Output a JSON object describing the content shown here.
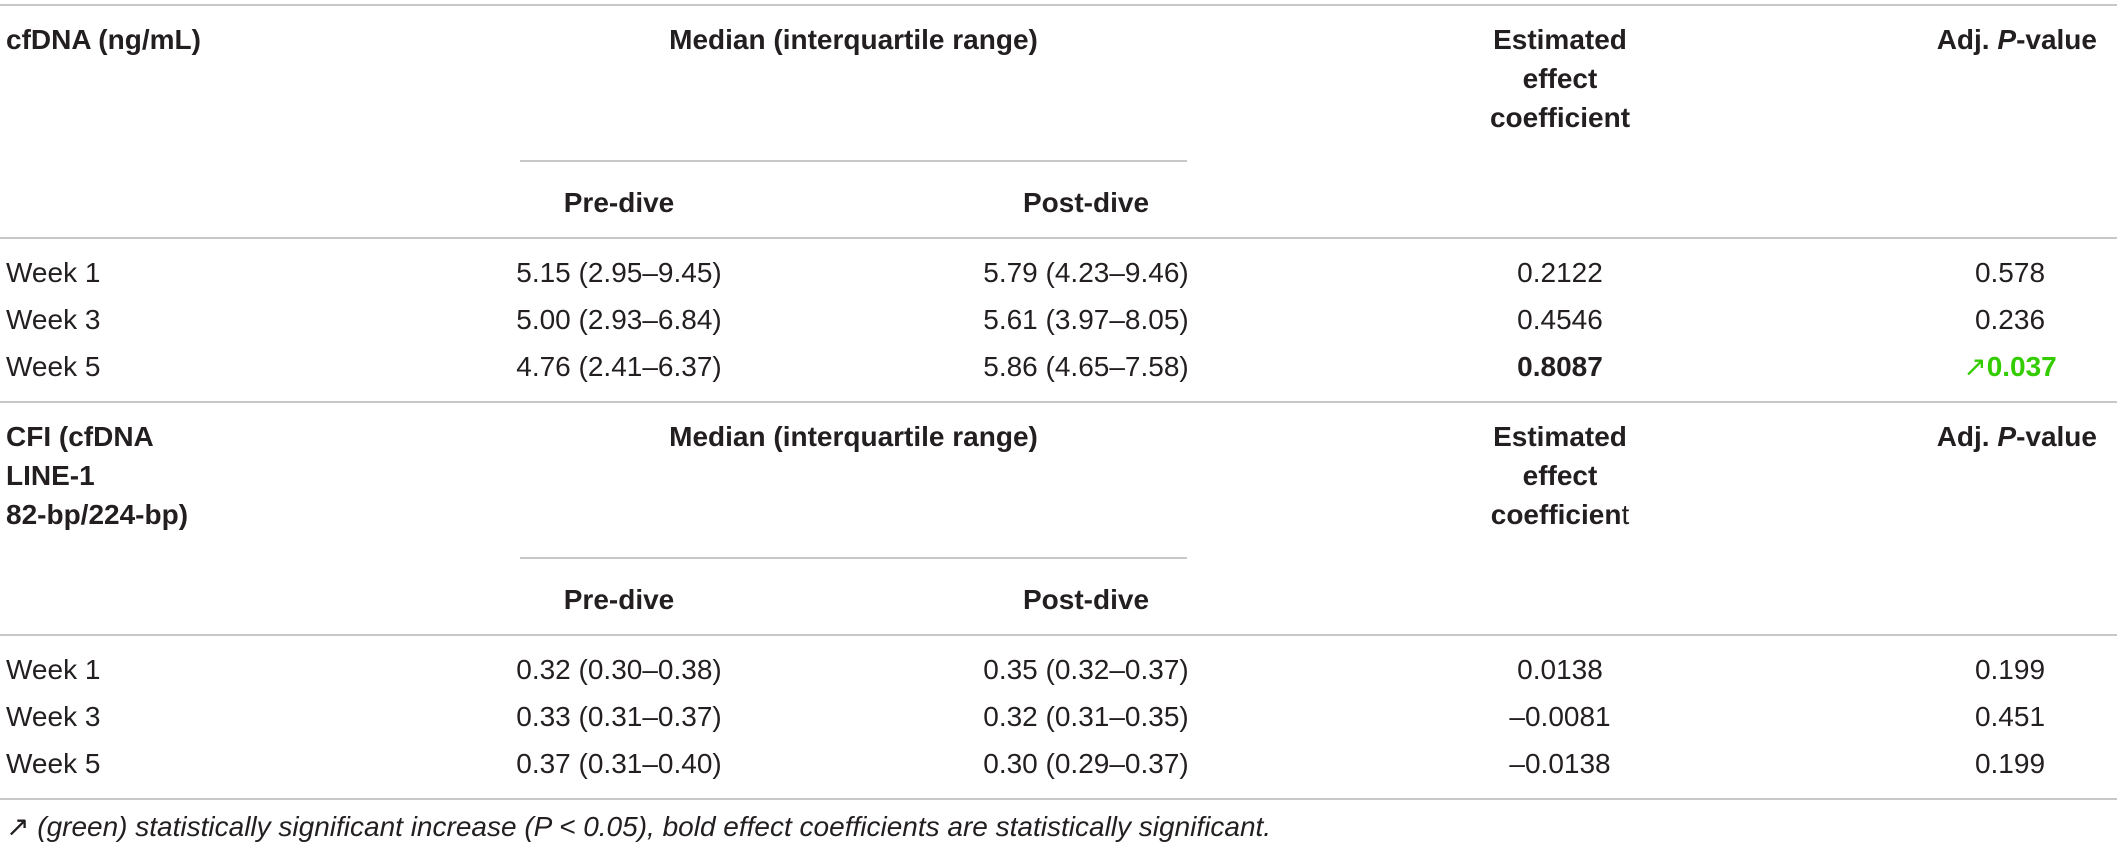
{
  "colors": {
    "significant": "#33cc00",
    "rule": "#c8c8c8",
    "text": "#231f20"
  },
  "sections": [
    {
      "label": "cfDNA (ng/mL)",
      "median_header": "Median (interquartile range)",
      "sub_pre": "Pre-dive",
      "sub_post": "Post-dive",
      "effect_header": "Estimated effect coefficient",
      "p_header_prefix": "Adj. ",
      "p_header_italic": "P",
      "p_header_suffix": "-value",
      "rows": [
        {
          "week": "Week 1",
          "pre": "5.15 (2.95–9.45)",
          "post": "5.79 (4.23–9.46)",
          "effect": "0.2122",
          "p": "0.578"
        },
        {
          "week": "Week 3",
          "pre": "5.00 (2.93–6.84)",
          "post": "5.61 (3.97–8.05)",
          "effect": "0.4546",
          "p": "0.236"
        },
        {
          "week": "Week 5",
          "pre": "4.76 (2.41–6.37)",
          "post": "5.86 (4.65–7.58)",
          "effect": "0.8087",
          "p_arrow": "↗",
          "p": "0.037"
        }
      ]
    },
    {
      "label_line1": "CFI (cfDNA",
      "label_line2": "LINE-1",
      "label_line3": "82-bp/224-bp)",
      "median_header": "Median (interquartile range)",
      "sub_pre": "Pre-dive",
      "sub_post": "Post-dive",
      "effect_header_bold": "Estimated effect coefficien",
      "effect_header_tail": "t",
      "p_header_prefix": "Adj. ",
      "p_header_italic": "P",
      "p_header_suffix": "-value",
      "rows": [
        {
          "week": "Week 1",
          "pre": "0.32 (0.30–0.38)",
          "post": "0.35 (0.32–0.37)",
          "effect": "0.0138",
          "p": "0.199"
        },
        {
          "week": "Week 3",
          "pre": "0.33 (0.31–0.37)",
          "post": "0.32 (0.31–0.35)",
          "effect": "–0.0081",
          "p": "0.451"
        },
        {
          "week": "Week 5",
          "pre": "0.37 (0.31–0.40)",
          "post": "0.30 (0.29–0.37)",
          "effect": "–0.0138",
          "p": "0.199"
        }
      ]
    }
  ],
  "footnote": "↗ (green) statistically significant increase (P < 0.05), bold effect coefficients are statistically significant."
}
